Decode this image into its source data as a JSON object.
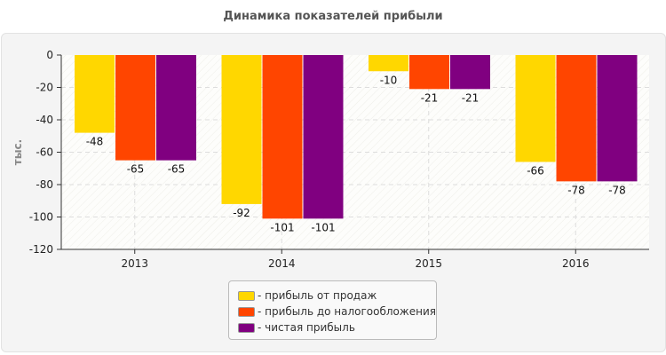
{
  "chart_data": {
    "type": "bar",
    "title": "Динамика показателей прибыли",
    "ylabel": "тыс.",
    "xlabel": "",
    "categories": [
      "2013",
      "2014",
      "2015",
      "2016"
    ],
    "ylim": [
      -120,
      0
    ],
    "yticks": [
      0,
      -20,
      -40,
      -60,
      -80,
      -100,
      -120
    ],
    "grid": true,
    "legend_position": "bottom",
    "series": [
      {
        "name": "- прибыль от продаж",
        "color": "#FFD700",
        "values": [
          -48,
          -92,
          -10,
          -66
        ]
      },
      {
        "name": "- прибыль до налогообложения",
        "color": "#FF4500",
        "values": [
          -65,
          -101,
          -21,
          -78
        ]
      },
      {
        "name": "- чистая прибыль",
        "color": "#800080",
        "values": [
          -65,
          -101,
          -21,
          -78
        ]
      }
    ]
  }
}
